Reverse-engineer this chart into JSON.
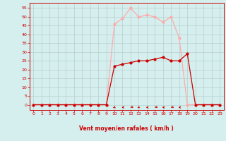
{
  "x": [
    0,
    1,
    2,
    3,
    4,
    5,
    6,
    7,
    8,
    9,
    10,
    11,
    12,
    13,
    14,
    15,
    16,
    17,
    18,
    19,
    20,
    21,
    22,
    23
  ],
  "mean_wind": [
    0,
    0,
    0,
    0,
    0,
    0,
    0,
    0,
    0,
    0,
    22,
    23,
    24,
    25,
    25,
    26,
    27,
    25,
    25,
    29,
    0,
    0,
    0,
    0
  ],
  "gust_wind": [
    0,
    0,
    0,
    0,
    0,
    0,
    0,
    0,
    0,
    0,
    46,
    49,
    55,
    50,
    51,
    50,
    47,
    50,
    38,
    0,
    0,
    0,
    0,
    0
  ],
  "mean_color": "#cc0000",
  "gust_color": "#ffaaaa",
  "bg_color": "#d5eeee",
  "grid_color": "#b0c8c8",
  "xlabel": "Vent moyen/en rafales ( km/h )",
  "xlabel_color": "#cc0000",
  "tick_color": "#cc0000",
  "spine_color": "#cc0000",
  "ylim": [
    -3,
    58
  ],
  "xlim": [
    -0.5,
    23.5
  ],
  "yticks": [
    0,
    5,
    10,
    15,
    20,
    25,
    30,
    35,
    40,
    45,
    50,
    55
  ],
  "xticks": [
    0,
    1,
    2,
    3,
    4,
    5,
    6,
    7,
    8,
    9,
    10,
    11,
    12,
    13,
    14,
    15,
    16,
    17,
    18,
    19,
    20,
    21,
    22,
    23
  ],
  "arrow_hours": [
    10,
    11,
    12,
    13,
    14,
    15,
    16,
    17,
    18
  ],
  "arrow_angles_deg": [
    210,
    270,
    225,
    210,
    270,
    225,
    270,
    225,
    270
  ]
}
